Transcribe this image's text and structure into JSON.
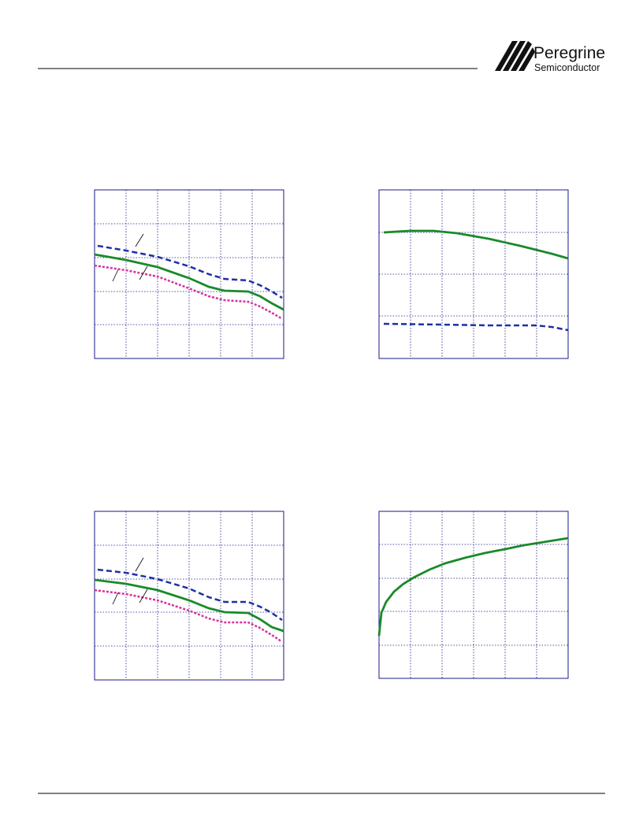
{
  "header": {
    "logo": {
      "name": "Peregrine",
      "subtitle": "Semiconductor"
    }
  }
}
